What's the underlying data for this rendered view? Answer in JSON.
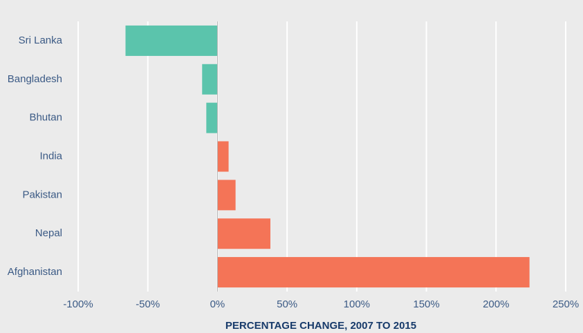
{
  "chart_data": {
    "type": "barh",
    "categories": [
      "Sri Lanka",
      "Bangladesh",
      "Bhutan",
      "India",
      "Pakistan",
      "Nepal",
      "Afghanistan"
    ],
    "values": [
      -66,
      -11,
      -8,
      8,
      13,
      38,
      224
    ],
    "colors": [
      "#5bc4ac",
      "#5bc4ac",
      "#5bc4ac",
      "#f47457",
      "#f47457",
      "#f47457",
      "#f47457"
    ],
    "xlabel": "PERCENTAGE CHANGE, 2007 TO 2015",
    "xlim": [
      -100,
      250
    ],
    "xticks": [
      {
        "value": -100,
        "label": "-100%"
      },
      {
        "value": -50,
        "label": "-50%"
      },
      {
        "value": 0,
        "label": "0%"
      },
      {
        "value": 50,
        "label": "50%"
      },
      {
        "value": 100,
        "label": "100%"
      },
      {
        "value": 150,
        "label": "150%"
      },
      {
        "value": 200,
        "label": "200%"
      },
      {
        "value": 250,
        "label": "250%"
      }
    ],
    "grid": true
  }
}
